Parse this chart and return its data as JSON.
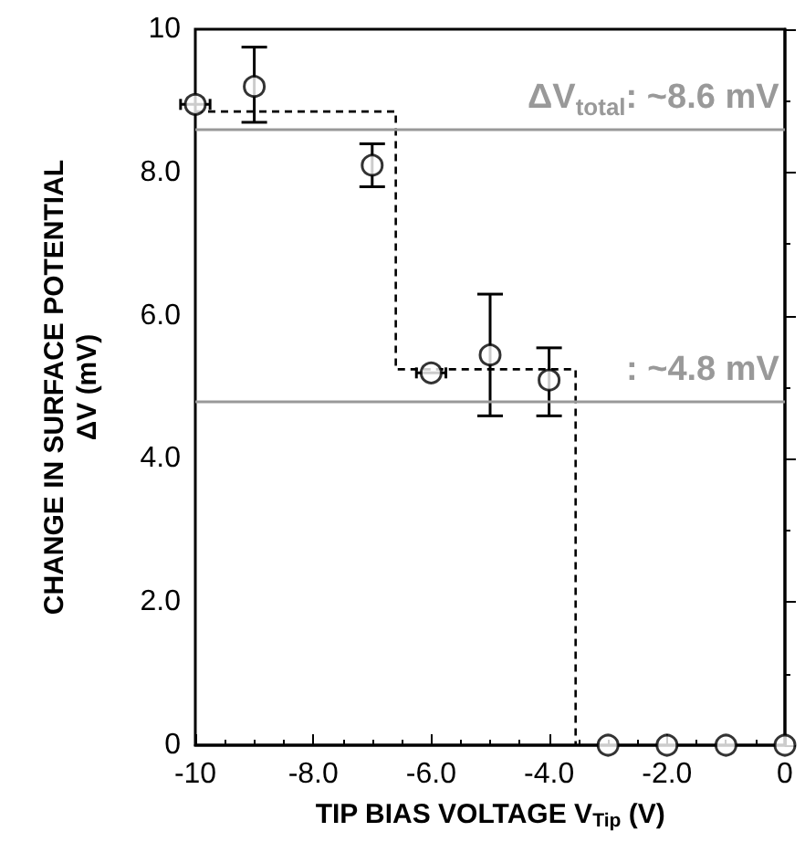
{
  "chart_data": {
    "type": "scatter",
    "xlabel": "TIP BIAS VOLTAGE V$_{Tip}$ (V)",
    "ylabel": "CHANGE IN SURFACE POTENTIAL\nΔV (mV)",
    "xlim": [
      -10,
      0
    ],
    "xticks": [
      -10,
      {
        "value": -8,
        "label": "-8.0"
      },
      {
        "value": -6,
        "label": "-6.0"
      },
      {
        "value": -4,
        "label": "-4.0"
      },
      {
        "value": -2,
        "label": "-2.0"
      },
      0
    ],
    "ylim": [
      0,
      10
    ],
    "yticks": [
      0,
      {
        "value": 2,
        "label": "2.0"
      },
      {
        "value": 4,
        "label": "4.0"
      },
      {
        "value": 6,
        "label": "6.0"
      },
      {
        "value": 8,
        "label": "8.0"
      },
      10
    ],
    "grid": false,
    "series": [
      {
        "type": "line",
        "color": "#000000",
        "line_style": "dashed",
        "marker": "none",
        "x": [
          -10,
          -6.6,
          -6.6,
          -3.55,
          -3.55
        ],
        "values": [
          8.85,
          8.85,
          5.25,
          5.25,
          0
        ]
      },
      {
        "color": "#000000",
        "marker": "circle",
        "x": [
          -10,
          -9,
          -7,
          -6,
          -5,
          -4,
          -3,
          -2,
          -1,
          0
        ],
        "values": [
          8.95,
          9.2,
          8.1,
          5.2,
          5.45,
          5.1,
          0,
          0,
          0,
          0
        ],
        "errors": [
          null,
          [
            8.7,
            9.75
          ],
          [
            7.8,
            8.4
          ],
          null,
          [
            4.6,
            6.3
          ],
          [
            4.6,
            5.55
          ],
          null,
          null,
          null,
          null
        ],
        "xerrors": [
          0.25,
          null,
          null,
          0.25,
          null,
          null,
          null,
          null,
          null,
          null
        ]
      }
    ],
    "ref_lines": [
      {
        "axis": "y",
        "value": 8.6,
        "label": "ΔV$_{total}$: ~8.6 mV",
        "color": "#999999"
      },
      {
        "axis": "y",
        "value": 4.8,
        "label": ": ~4.8 mV",
        "color": "#999999"
      }
    ]
  }
}
